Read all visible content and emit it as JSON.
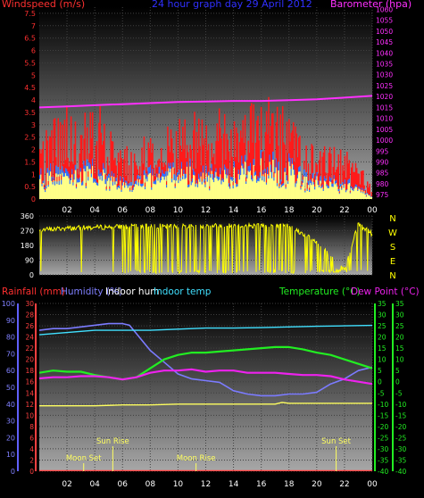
{
  "chart_data": [
    {
      "panel": "wind-barometer",
      "type": "bar",
      "title": "24 hour graph day  29 April 2012",
      "left_axis_title": "Windspeed (m/s)",
      "right_axis_title": "Barometer (hpa)",
      "x_ticks": [
        "02",
        "04",
        "06",
        "08",
        "10",
        "12",
        "14",
        "16",
        "18",
        "20",
        "22",
        "00"
      ],
      "left_ticks": [
        "0",
        "0.5",
        "1",
        "1.5",
        "2",
        "2.5",
        "3",
        "3.5",
        "4",
        "4.5",
        "5",
        "5.5",
        "6",
        "6.5",
        "7",
        "7.5"
      ],
      "left_range": [
        0,
        7.75
      ],
      "right_ticks": [
        "975",
        "980",
        "985",
        "990",
        "995",
        "1000",
        "1005",
        "1010",
        "1015",
        "1020",
        "1025",
        "1030",
        "1035",
        "1040",
        "1045",
        "1050",
        "1055",
        "1060"
      ],
      "right_range": [
        973,
        1061
      ],
      "x_range_hours": [
        0,
        24
      ],
      "barometer": {
        "x": [
          0,
          2,
          4,
          6,
          8,
          10,
          12,
          14,
          16,
          18,
          20,
          22,
          24
        ],
        "y": [
          1015,
          1015.5,
          1016,
          1016.5,
          1017,
          1017.5,
          1017.7,
          1018,
          1018,
          1018.3,
          1018.7,
          1019.5,
          1020.3
        ]
      },
      "gust_envelope": {
        "x": [
          0,
          1,
          2,
          3,
          4,
          5,
          6,
          7,
          8,
          9,
          10,
          11,
          12,
          13,
          14,
          15,
          16,
          17,
          18,
          19,
          20,
          21,
          22,
          23,
          24
        ],
        "y": [
          2.5,
          3.5,
          3.8,
          3.2,
          4.2,
          3.0,
          2.2,
          2.0,
          3.0,
          3.4,
          3.2,
          3.6,
          3.2,
          3.8,
          3.8,
          3.6,
          4.6,
          3.8,
          3.8,
          2.6,
          2.2,
          2.2,
          2.0,
          1.6,
          0.5
        ]
      },
      "wind_envelope": {
        "x": [
          0,
          1,
          2,
          3,
          4,
          5,
          6,
          7,
          8,
          9,
          10,
          11,
          12,
          13,
          14,
          15,
          16,
          17,
          18,
          19,
          20,
          21,
          22,
          23,
          24
        ],
        "y": [
          1.3,
          1.6,
          1.7,
          1.5,
          1.8,
          1.4,
          1.0,
          0.9,
          1.3,
          1.5,
          1.4,
          1.6,
          1.4,
          1.6,
          1.7,
          1.6,
          2.0,
          1.7,
          1.7,
          1.2,
          1.0,
          1.0,
          0.9,
          0.7,
          0.2
        ]
      }
    },
    {
      "panel": "wind-direction",
      "type": "line",
      "left_ticks": [
        "0",
        "90",
        "180",
        "270",
        "360"
      ],
      "left_range": [
        0,
        360
      ],
      "right_labels": [
        "N",
        "W",
        "S",
        "E",
        "N"
      ],
      "x_range_hours": [
        0,
        24
      ],
      "direction_envelope": {
        "x": [
          0,
          2,
          4,
          6,
          7,
          8,
          10,
          12,
          14,
          16,
          17,
          18,
          20,
          22,
          23,
          24
        ],
        "y": [
          275,
          285,
          290,
          295,
          300,
          300,
          295,
          300,
          300,
          300,
          300,
          300,
          200,
          30,
          310,
          250
        ]
      }
    },
    {
      "panel": "temperature-humidity",
      "type": "line",
      "legend": [
        "Rainfall (mm)",
        "Humidity (%)",
        "Indoor hum",
        "Indoor temp",
        "Temperature (°C)",
        "Dew Point (°C)"
      ],
      "x_ticks": [
        "02",
        "04",
        "06",
        "08",
        "10",
        "12",
        "14",
        "16",
        "18",
        "20",
        "22",
        "00"
      ],
      "humidity_ticks": [
        "0",
        "10",
        "20",
        "30",
        "40",
        "50",
        "60",
        "70",
        "80",
        "90",
        "100"
      ],
      "humidity_range": [
        0,
        100
      ],
      "rain_ticks": [
        "0",
        "2",
        "4",
        "6",
        "8",
        "10",
        "12",
        "14",
        "16",
        "18",
        "20",
        "22",
        "24",
        "26",
        "28",
        "30"
      ],
      "rain_range": [
        0,
        30
      ],
      "temp_ticks": [
        "-40",
        "-35",
        "-30",
        "-25",
        "-20",
        "-15",
        "-10",
        "-5",
        "0",
        "5",
        "10",
        "15",
        "20",
        "25",
        "30",
        "35"
      ],
      "temp_range": [
        -40,
        35
      ],
      "x_range_hours": [
        0,
        24
      ],
      "series": [
        {
          "name": "Humidity (%)",
          "color": "#7b7bff",
          "x": [
            0,
            1,
            2,
            3,
            4,
            5,
            6,
            6.5,
            7,
            8,
            9,
            10,
            11,
            12,
            13,
            14,
            15,
            16,
            17,
            18,
            19,
            20,
            21,
            22,
            23,
            24
          ],
          "y": [
            84,
            85,
            85,
            86,
            87,
            88,
            88,
            87,
            82,
            72,
            65,
            58,
            55,
            54,
            53,
            48,
            46,
            45,
            45,
            46,
            46,
            47,
            52,
            55,
            60,
            62
          ]
        },
        {
          "name": "Indoor hum",
          "color": "#ffff60",
          "x": [
            0,
            2,
            4,
            6,
            8,
            10,
            12,
            14,
            16,
            17,
            17.5,
            18,
            20,
            22,
            24
          ],
          "y": [
            39,
            39,
            39,
            39.5,
            39.5,
            40,
            40,
            40,
            40,
            40,
            41,
            40.5,
            40.5,
            40.5,
            40.5
          ]
        },
        {
          "name": "Indoor temp",
          "color": "#40e0ff",
          "x": [
            0,
            2,
            4,
            6,
            8,
            10,
            12,
            14,
            16,
            18,
            20,
            22,
            24
          ],
          "y": [
            21,
            22,
            23,
            23,
            23,
            23.5,
            24,
            24,
            24.2,
            24.5,
            24.8,
            25,
            25.2
          ]
        },
        {
          "name": "Temperature (°C)",
          "color": "#22ee22",
          "x": [
            0,
            1,
            2,
            3,
            4,
            5,
            6,
            7,
            8,
            9,
            10,
            11,
            12,
            13,
            14,
            15,
            16,
            17,
            18,
            19,
            20,
            21,
            22,
            23,
            24
          ],
          "y": [
            4,
            5,
            4.5,
            4.5,
            3,
            2,
            1,
            2,
            6,
            10,
            12,
            13,
            13,
            13.5,
            14,
            14.5,
            15,
            15.5,
            15.5,
            14.5,
            13,
            12,
            10,
            8,
            6
          ]
        },
        {
          "name": "Dew Point (°C)",
          "color": "#ee22ee",
          "x": [
            0,
            1,
            2,
            3,
            4,
            5,
            6,
            7,
            8,
            9,
            10,
            11,
            12,
            13,
            14,
            15,
            16,
            17,
            18,
            19,
            20,
            21,
            22,
            23,
            24
          ],
          "y": [
            1.5,
            2,
            2,
            2.5,
            2.5,
            2,
            1,
            2,
            4,
            5,
            5,
            5.5,
            4.5,
            5,
            5,
            4,
            4,
            4,
            3.5,
            3,
            3,
            2.5,
            1,
            0,
            -1
          ]
        },
        {
          "name": "Rainfall (mm)",
          "color": "#ff4040",
          "x": [
            0,
            24
          ],
          "y": [
            0,
            0
          ]
        }
      ],
      "annotations": [
        {
          "label": "Moon Set",
          "hour": 3.2
        },
        {
          "label": "Sun Rise",
          "hour": 5.3
        },
        {
          "label": "Moon Rise",
          "hour": 11.3
        },
        {
          "label": "Sun Set",
          "hour": 21.4
        }
      ]
    }
  ]
}
